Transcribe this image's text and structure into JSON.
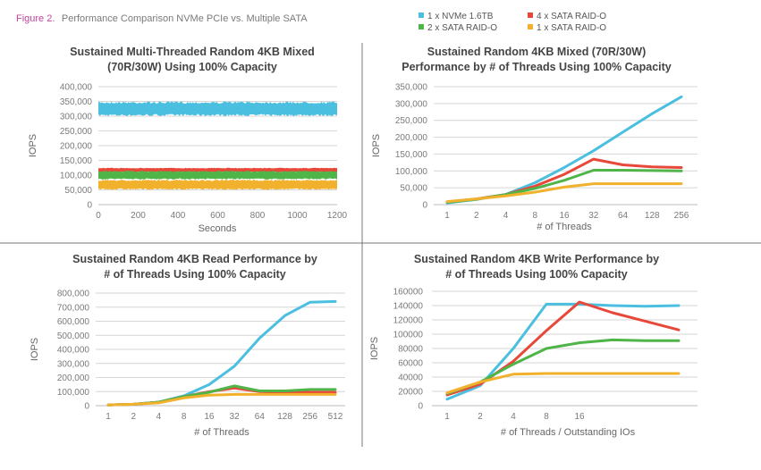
{
  "figure": {
    "label": "Figure 2.",
    "caption": "Performance Comparison NVMe PCIe vs. Multiple SATA"
  },
  "legend": [
    {
      "name": "1 x NVMe 1.6TB",
      "color": "#4bbfe0"
    },
    {
      "name": "4 x SATA RAID-O",
      "color": "#e8483a"
    },
    {
      "name": "2 x SATA RAID-O",
      "color": "#4fb548"
    },
    {
      "name": "1 x SATA RAID-O",
      "color": "#f2b12c"
    }
  ],
  "chart_data": [
    {
      "type": "area",
      "title": [
        "Sustained Multi-Threaded Random 4KB Mixed",
        "(70R/30W) Using 100% Capacity"
      ],
      "xlabel": "Seconds",
      "ylabel": "IOPS",
      "xlim": [
        0,
        1200
      ],
      "ylim": [
        0,
        400000
      ],
      "xticks": [
        "0",
        "200",
        "400",
        "600",
        "800",
        "1000",
        "1200"
      ],
      "yticks": [
        "0",
        "50,000",
        "100,000",
        "150,000",
        "200,000",
        "250,000",
        "300,000",
        "350,000",
        "400,000"
      ],
      "grid": true,
      "series": [
        {
          "name": "1 x NVMe 1.6TB",
          "range": [
            300000,
            350000
          ]
        },
        {
          "name": "4 x SATA RAID-O",
          "range": [
            110000,
            125000
          ]
        },
        {
          "name": "2 x SATA RAID-O",
          "range": [
            85000,
            115000
          ]
        },
        {
          "name": "1 x SATA RAID-O",
          "range": [
            50000,
            85000
          ]
        }
      ]
    },
    {
      "type": "line",
      "title": [
        "Sustained Random 4KB Mixed (70R/30W)",
        "Performance by # of Threads Using 100% Capacity"
      ],
      "xlabel": "# of Threads",
      "ylabel": "IOPS",
      "categories": [
        "1",
        "2",
        "4",
        "8",
        "16",
        "32",
        "64",
        "128",
        "256"
      ],
      "ylim": [
        0,
        350000
      ],
      "yticks": [
        "0",
        "50,000",
        "100,000",
        "150,000",
        "200,000",
        "250,000",
        "300,000",
        "350,000"
      ],
      "grid": true,
      "series": [
        {
          "name": "1 x NVMe 1.6TB",
          "values": [
            5000,
            15000,
            30000,
            65000,
            110000,
            160000,
            215000,
            270000,
            320000
          ]
        },
        {
          "name": "4 x SATA RAID-O",
          "values": [
            8000,
            17000,
            30000,
            55000,
            90000,
            135000,
            118000,
            112000,
            110000
          ]
        },
        {
          "name": "2 x SATA RAID-O",
          "values": [
            7000,
            16000,
            30000,
            48000,
            72000,
            102000,
            102000,
            101000,
            100000
          ]
        },
        {
          "name": "1 x SATA RAID-O",
          "values": [
            9000,
            17000,
            26000,
            37000,
            52000,
            62000,
            62000,
            62000,
            62000
          ]
        }
      ]
    },
    {
      "type": "line",
      "title": [
        "Sustained Random 4KB Read Performance by",
        "# of Threads Using 100% Capacity"
      ],
      "xlabel": "# of Threads",
      "ylabel": "IOPS",
      "categories": [
        "1",
        "2",
        "4",
        "8",
        "16",
        "32",
        "64",
        "128",
        "256",
        "512"
      ],
      "ylim": [
        0,
        800000
      ],
      "yticks": [
        "0",
        "100,000",
        "200,000",
        "300,000",
        "400,000",
        "500,000",
        "600,000",
        "700,000",
        "800,000"
      ],
      "grid": true,
      "series": [
        {
          "name": "1 x NVMe 1.6TB",
          "values": [
            5000,
            10000,
            25000,
            70000,
            150000,
            280000,
            480000,
            640000,
            735000,
            740000
          ]
        },
        {
          "name": "4 x SATA RAID-O",
          "values": [
            5000,
            10000,
            25000,
            65000,
            100000,
            125000,
            100000,
            95000,
            95000,
            95000
          ]
        },
        {
          "name": "2 x SATA RAID-O",
          "values": [
            5000,
            10000,
            25000,
            65000,
            95000,
            140000,
            105000,
            105000,
            115000,
            115000
          ]
        },
        {
          "name": "1 x SATA RAID-O",
          "values": [
            5000,
            10000,
            20000,
            55000,
            75000,
            80000,
            80000,
            80000,
            80000,
            80000
          ]
        }
      ]
    },
    {
      "type": "line",
      "title": [
        "Sustained Random 4KB Write Performance by",
        "# of Threads Using 100% Capacity"
      ],
      "xlabel": "# of Threads / Outstanding IOs",
      "ylabel": "IOPS",
      "categories": [
        "1",
        "2",
        "4",
        "8",
        "16",
        "",
        "",
        ""
      ],
      "ylim": [
        0,
        160000
      ],
      "yticks": [
        "0",
        "20000",
        "40000",
        "60000",
        "80000",
        "100000",
        "120000",
        "140000",
        "160000"
      ],
      "grid": true,
      "series": [
        {
          "name": "1 x NVMe 1.6TB",
          "values": [
            9000,
            28000,
            80000,
            142000,
            142000,
            140000,
            139000,
            140000
          ]
        },
        {
          "name": "4 x SATA RAID-O",
          "values": [
            15000,
            30000,
            62000,
            105000,
            145000,
            130000,
            118000,
            106000
          ]
        },
        {
          "name": "2 x SATA RAID-O",
          "values": [
            17000,
            33000,
            58000,
            80000,
            88000,
            92000,
            91000,
            91000
          ]
        },
        {
          "name": "1 x SATA RAID-O",
          "values": [
            18000,
            33000,
            44000,
            45000,
            45000,
            45000,
            45000,
            45000
          ]
        }
      ]
    }
  ]
}
